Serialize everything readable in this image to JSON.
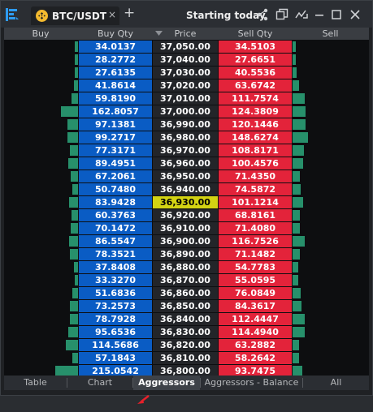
{
  "header": {
    "tab_title": "BTC/USDT",
    "close_glyph": "×",
    "add_glyph": "+",
    "title": "Starting today",
    "icons": [
      "share-icon",
      "detach-icon",
      "chart-icon",
      "minimize-icon",
      "maximize-icon",
      "close-icon"
    ]
  },
  "columns": [
    "Buy",
    "Buy Qty",
    "Price",
    "Sell Qty",
    "Sell"
  ],
  "rows": [
    {
      "buy_qty": "34.0137",
      "price": "37,050.00",
      "sell_qty": "34.5103"
    },
    {
      "buy_qty": "28.2772",
      "price": "37,040.00",
      "sell_qty": "27.6651"
    },
    {
      "buy_qty": "27.6135",
      "price": "37,030.00",
      "sell_qty": "40.5536"
    },
    {
      "buy_qty": "41.8614",
      "price": "37,020.00",
      "sell_qty": "63.6742"
    },
    {
      "buy_qty": "59.8190",
      "price": "37,010.00",
      "sell_qty": "111.7574"
    },
    {
      "buy_qty": "162.8057",
      "price": "37,000.00",
      "sell_qty": "124.3809"
    },
    {
      "buy_qty": "97.1381",
      "price": "36,990.00",
      "sell_qty": "120.1446"
    },
    {
      "buy_qty": "99.2717",
      "price": "36,980.00",
      "sell_qty": "148.6274"
    },
    {
      "buy_qty": "77.3171",
      "price": "36,970.00",
      "sell_qty": "108.8171"
    },
    {
      "buy_qty": "89.4951",
      "price": "36,960.00",
      "sell_qty": "100.4576"
    },
    {
      "buy_qty": "67.2061",
      "price": "36,950.00",
      "sell_qty": "71.4350"
    },
    {
      "buy_qty": "50.7480",
      "price": "36,940.00",
      "sell_qty": "74.5872"
    },
    {
      "buy_qty": "83.9428",
      "price": "36,930.00",
      "sell_qty": "101.1214",
      "highlight": true
    },
    {
      "buy_qty": "60.3763",
      "price": "36,920.00",
      "sell_qty": "68.8161"
    },
    {
      "buy_qty": "70.1472",
      "price": "36,910.00",
      "sell_qty": "71.4080"
    },
    {
      "buy_qty": "86.5547",
      "price": "36,900.00",
      "sell_qty": "116.7526"
    },
    {
      "buy_qty": "78.3521",
      "price": "36,890.00",
      "sell_qty": "71.1482"
    },
    {
      "buy_qty": "37.8408",
      "price": "36,880.00",
      "sell_qty": "54.7783"
    },
    {
      "buy_qty": "33.3270",
      "price": "36,870.00",
      "sell_qty": "55.0595"
    },
    {
      "buy_qty": "51.6836",
      "price": "36,860.00",
      "sell_qty": "76.0849"
    },
    {
      "buy_qty": "73.2573",
      "price": "36,850.00",
      "sell_qty": "84.3617"
    },
    {
      "buy_qty": "78.7928",
      "price": "36,840.00",
      "sell_qty": "112.4447"
    },
    {
      "buy_qty": "95.6536",
      "price": "36,830.00",
      "sell_qty": "114.4940"
    },
    {
      "buy_qty": "114.5686",
      "price": "36,820.00",
      "sell_qty": "63.2882"
    },
    {
      "buy_qty": "57.1843",
      "price": "36,810.00",
      "sell_qty": "58.2642"
    },
    {
      "buy_qty": "215.0542",
      "price": "36,800.00",
      "sell_qty": "93.7475"
    }
  ],
  "bottom_tabs": [
    {
      "label": "Table"
    },
    {
      "label": "Chart"
    },
    {
      "label": "Aggressors",
      "active": true
    },
    {
      "label": "Aggressors - Balance"
    },
    {
      "label": "All"
    }
  ],
  "colors": {
    "buy_qty_bg": "#0a5cc4",
    "sell_qty_bg": "#e3233a",
    "bar": "#27906b",
    "highlight": "#d3d313",
    "accent": "#1e90ff",
    "pointer": "#e8202a"
  }
}
